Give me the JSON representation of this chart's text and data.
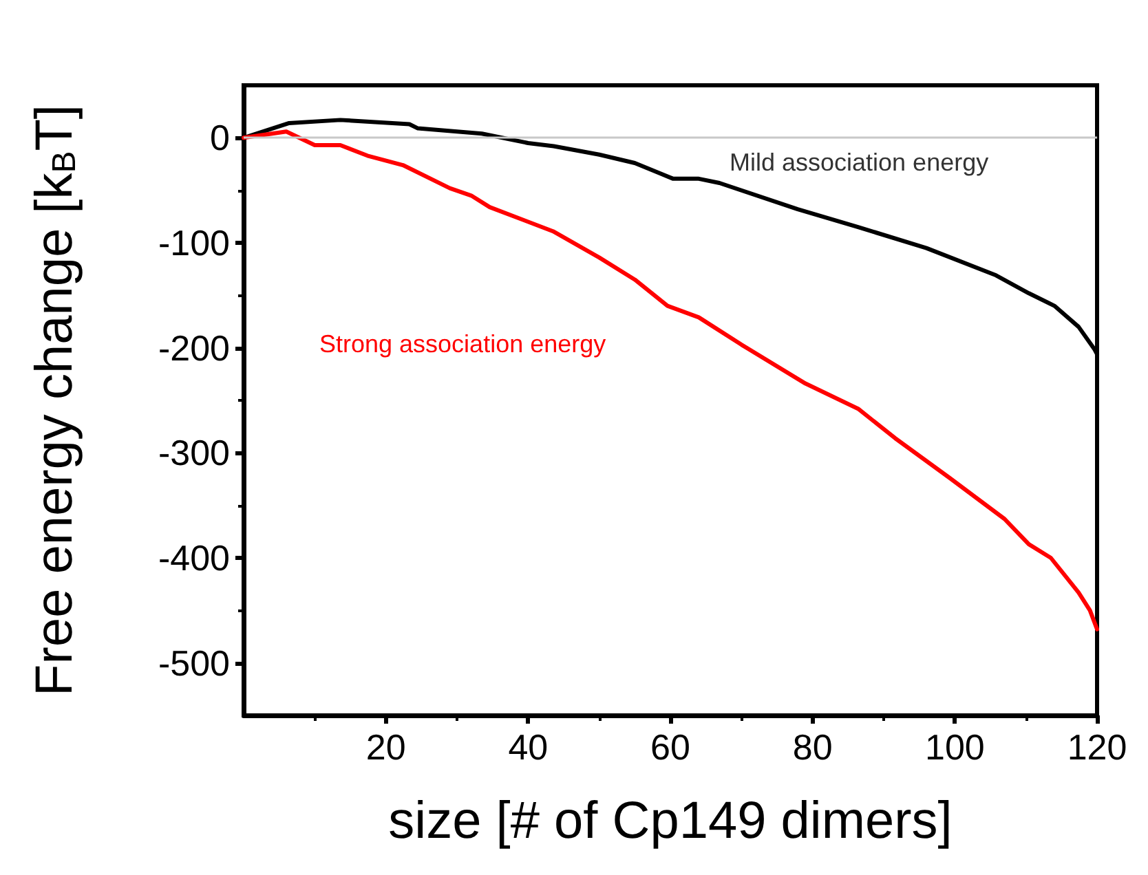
{
  "chart_data": {
    "type": "line",
    "xlabel": "size [# of Cp149 dimers]",
    "ylabel": "Free energy change [k$_{B}$T]",
    "xlim": [
      0,
      120
    ],
    "ylim": [
      -550,
      50
    ],
    "xticks": [
      20,
      40,
      60,
      80,
      100,
      120
    ],
    "yticks": [
      0,
      -100,
      -200,
      -300,
      -400,
      -500
    ],
    "grid": false,
    "legend": false,
    "marker": "none",
    "line_style": "solid",
    "ref_lines": [
      {
        "axis": "y",
        "value": 0,
        "color": "#c8c8c8"
      }
    ],
    "series": [
      {
        "name": "Mild association energy",
        "color": "#000000",
        "x": [
          0,
          6.4,
          13.6,
          23.3,
          24.5,
          33.5,
          40,
          43.6,
          50,
          55,
          60.4,
          64,
          66.9,
          77.9,
          86.4,
          96,
          105.8,
          110.4,
          114,
          117.4,
          119.6,
          120
        ],
        "values": [
          0,
          14,
          17,
          13,
          9,
          4,
          -5,
          -8,
          -16,
          -24,
          -39,
          -39,
          -43,
          -68,
          -85,
          -105,
          -131,
          -148,
          -160,
          -180,
          -201,
          -206
        ]
      },
      {
        "name": "Strong association energy",
        "color": "#ff0000",
        "x": [
          0,
          6,
          10,
          13.6,
          17.4,
          22.4,
          29,
          32,
          34.6,
          43.5,
          50,
          55,
          59.6,
          64,
          70,
          79,
          86.4,
          91.6,
          99.3,
          107,
          110.4,
          113.5,
          117.4,
          119,
          120
        ],
        "values": [
          0,
          6,
          -7,
          -7,
          -17,
          -26,
          -48,
          -55,
          -66,
          -89,
          -114,
          -135,
          -160,
          -171,
          -197,
          -234,
          -258,
          -286,
          -324,
          -363,
          -387,
          -400,
          -433,
          -450,
          -468
        ]
      }
    ]
  }
}
